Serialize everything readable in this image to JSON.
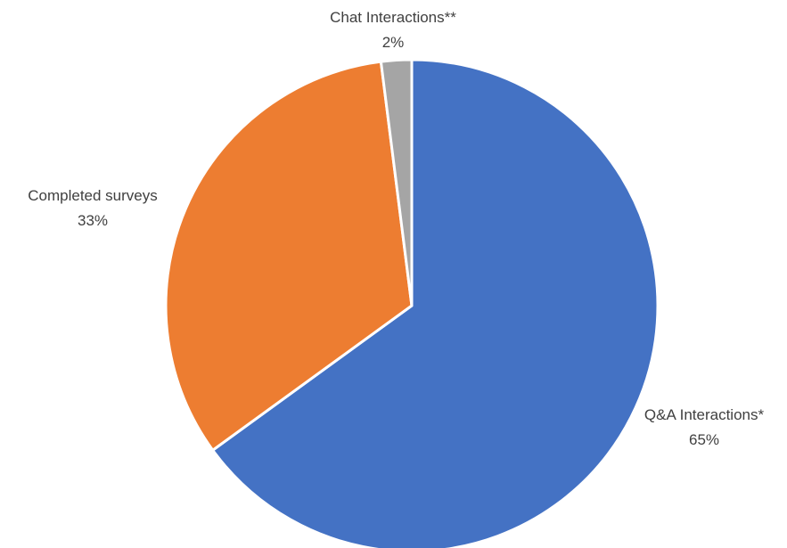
{
  "chart_data": {
    "type": "pie",
    "title": "",
    "start_angle_deg": 0,
    "direction": "clockwise",
    "slices": [
      {
        "label": "Q&A Interactions*",
        "value": 65,
        "value_label": "65%",
        "color": "#4472C4"
      },
      {
        "label": "Completed surveys",
        "value": 33,
        "value_label": "33%",
        "color": "#ED7D31"
      },
      {
        "label": "Chat Interactions**",
        "value": 2,
        "value_label": "2%",
        "color": "#A5A5A5"
      }
    ],
    "legend": "none",
    "data_labels": "category name and percentage"
  }
}
